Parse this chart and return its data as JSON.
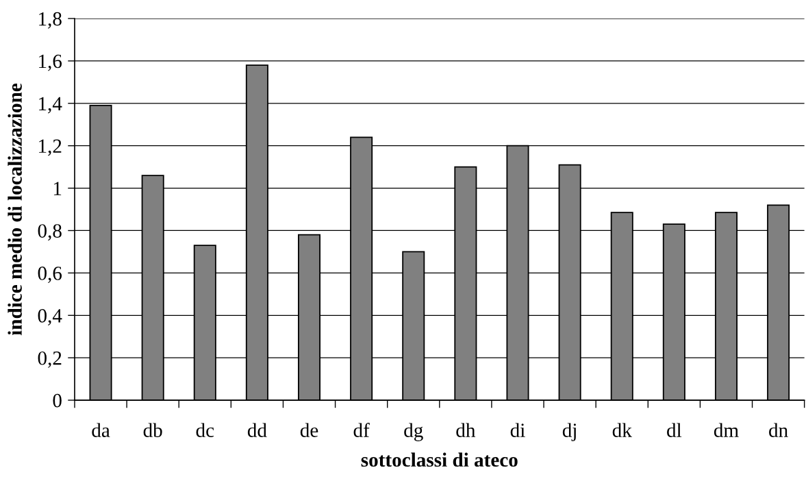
{
  "chart_data": {
    "type": "bar",
    "xlabel": "sottoclassi di ateco",
    "ylabel": "indice medio di localizzazione",
    "categories": [
      "da",
      "db",
      "dc",
      "dd",
      "de",
      "df",
      "dg",
      "dh",
      "di",
      "dj",
      "dk",
      "dl",
      "dm",
      "dn"
    ],
    "values": [
      1.39,
      1.06,
      0.73,
      1.58,
      0.78,
      1.24,
      0.7,
      1.1,
      1.2,
      1.11,
      0.885,
      0.83,
      0.885,
      0.92
    ],
    "color": "#808080",
    "ylim": [
      0,
      1.8
    ],
    "yticks": [
      0,
      {
        "value": 0.2,
        "label": "0,2"
      },
      {
        "value": 0.4,
        "label": "0,4"
      },
      {
        "value": 0.6,
        "label": "0,6"
      },
      {
        "value": 0.8,
        "label": "0,8"
      },
      1,
      {
        "value": 1.2,
        "label": "1,2"
      },
      {
        "value": 1.4,
        "label": "1,4"
      },
      {
        "value": 1.6,
        "label": "1,6"
      },
      {
        "value": 1.8,
        "label": "1,8"
      }
    ],
    "grid": "y"
  }
}
